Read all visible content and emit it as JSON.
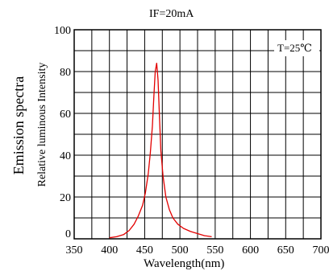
{
  "chart_data": {
    "type": "line",
    "title": "IF=20mA",
    "annotation": "T=25℃",
    "xlabel": "Wavelength(nm)",
    "ylabel": "Emission spectra",
    "ylabel_secondary": "Relative luminous Intensity",
    "xlim": [
      350,
      700
    ],
    "ylim": [
      0,
      100
    ],
    "x_ticks": [
      350,
      400,
      450,
      500,
      550,
      600,
      650,
      700
    ],
    "y_ticks": [
      0,
      20,
      40,
      60,
      80,
      100
    ],
    "grid": true,
    "line_color": "#e30000",
    "series": [
      {
        "x": [
          400,
          410,
          420,
          428,
          435,
          441,
          447,
          451,
          455,
          458,
          461,
          463,
          465,
          467,
          469,
          471,
          473,
          476,
          480,
          485,
          490,
          497,
          505,
          515,
          525,
          535,
          545
        ],
        "values": [
          0.5,
          1,
          2,
          4,
          7,
          11,
          16,
          22,
          31,
          41,
          54,
          68,
          80,
          84,
          76,
          58,
          42,
          30,
          20,
          14,
          10,
          7,
          5,
          3.5,
          2.5,
          1.5,
          1
        ]
      }
    ]
  }
}
